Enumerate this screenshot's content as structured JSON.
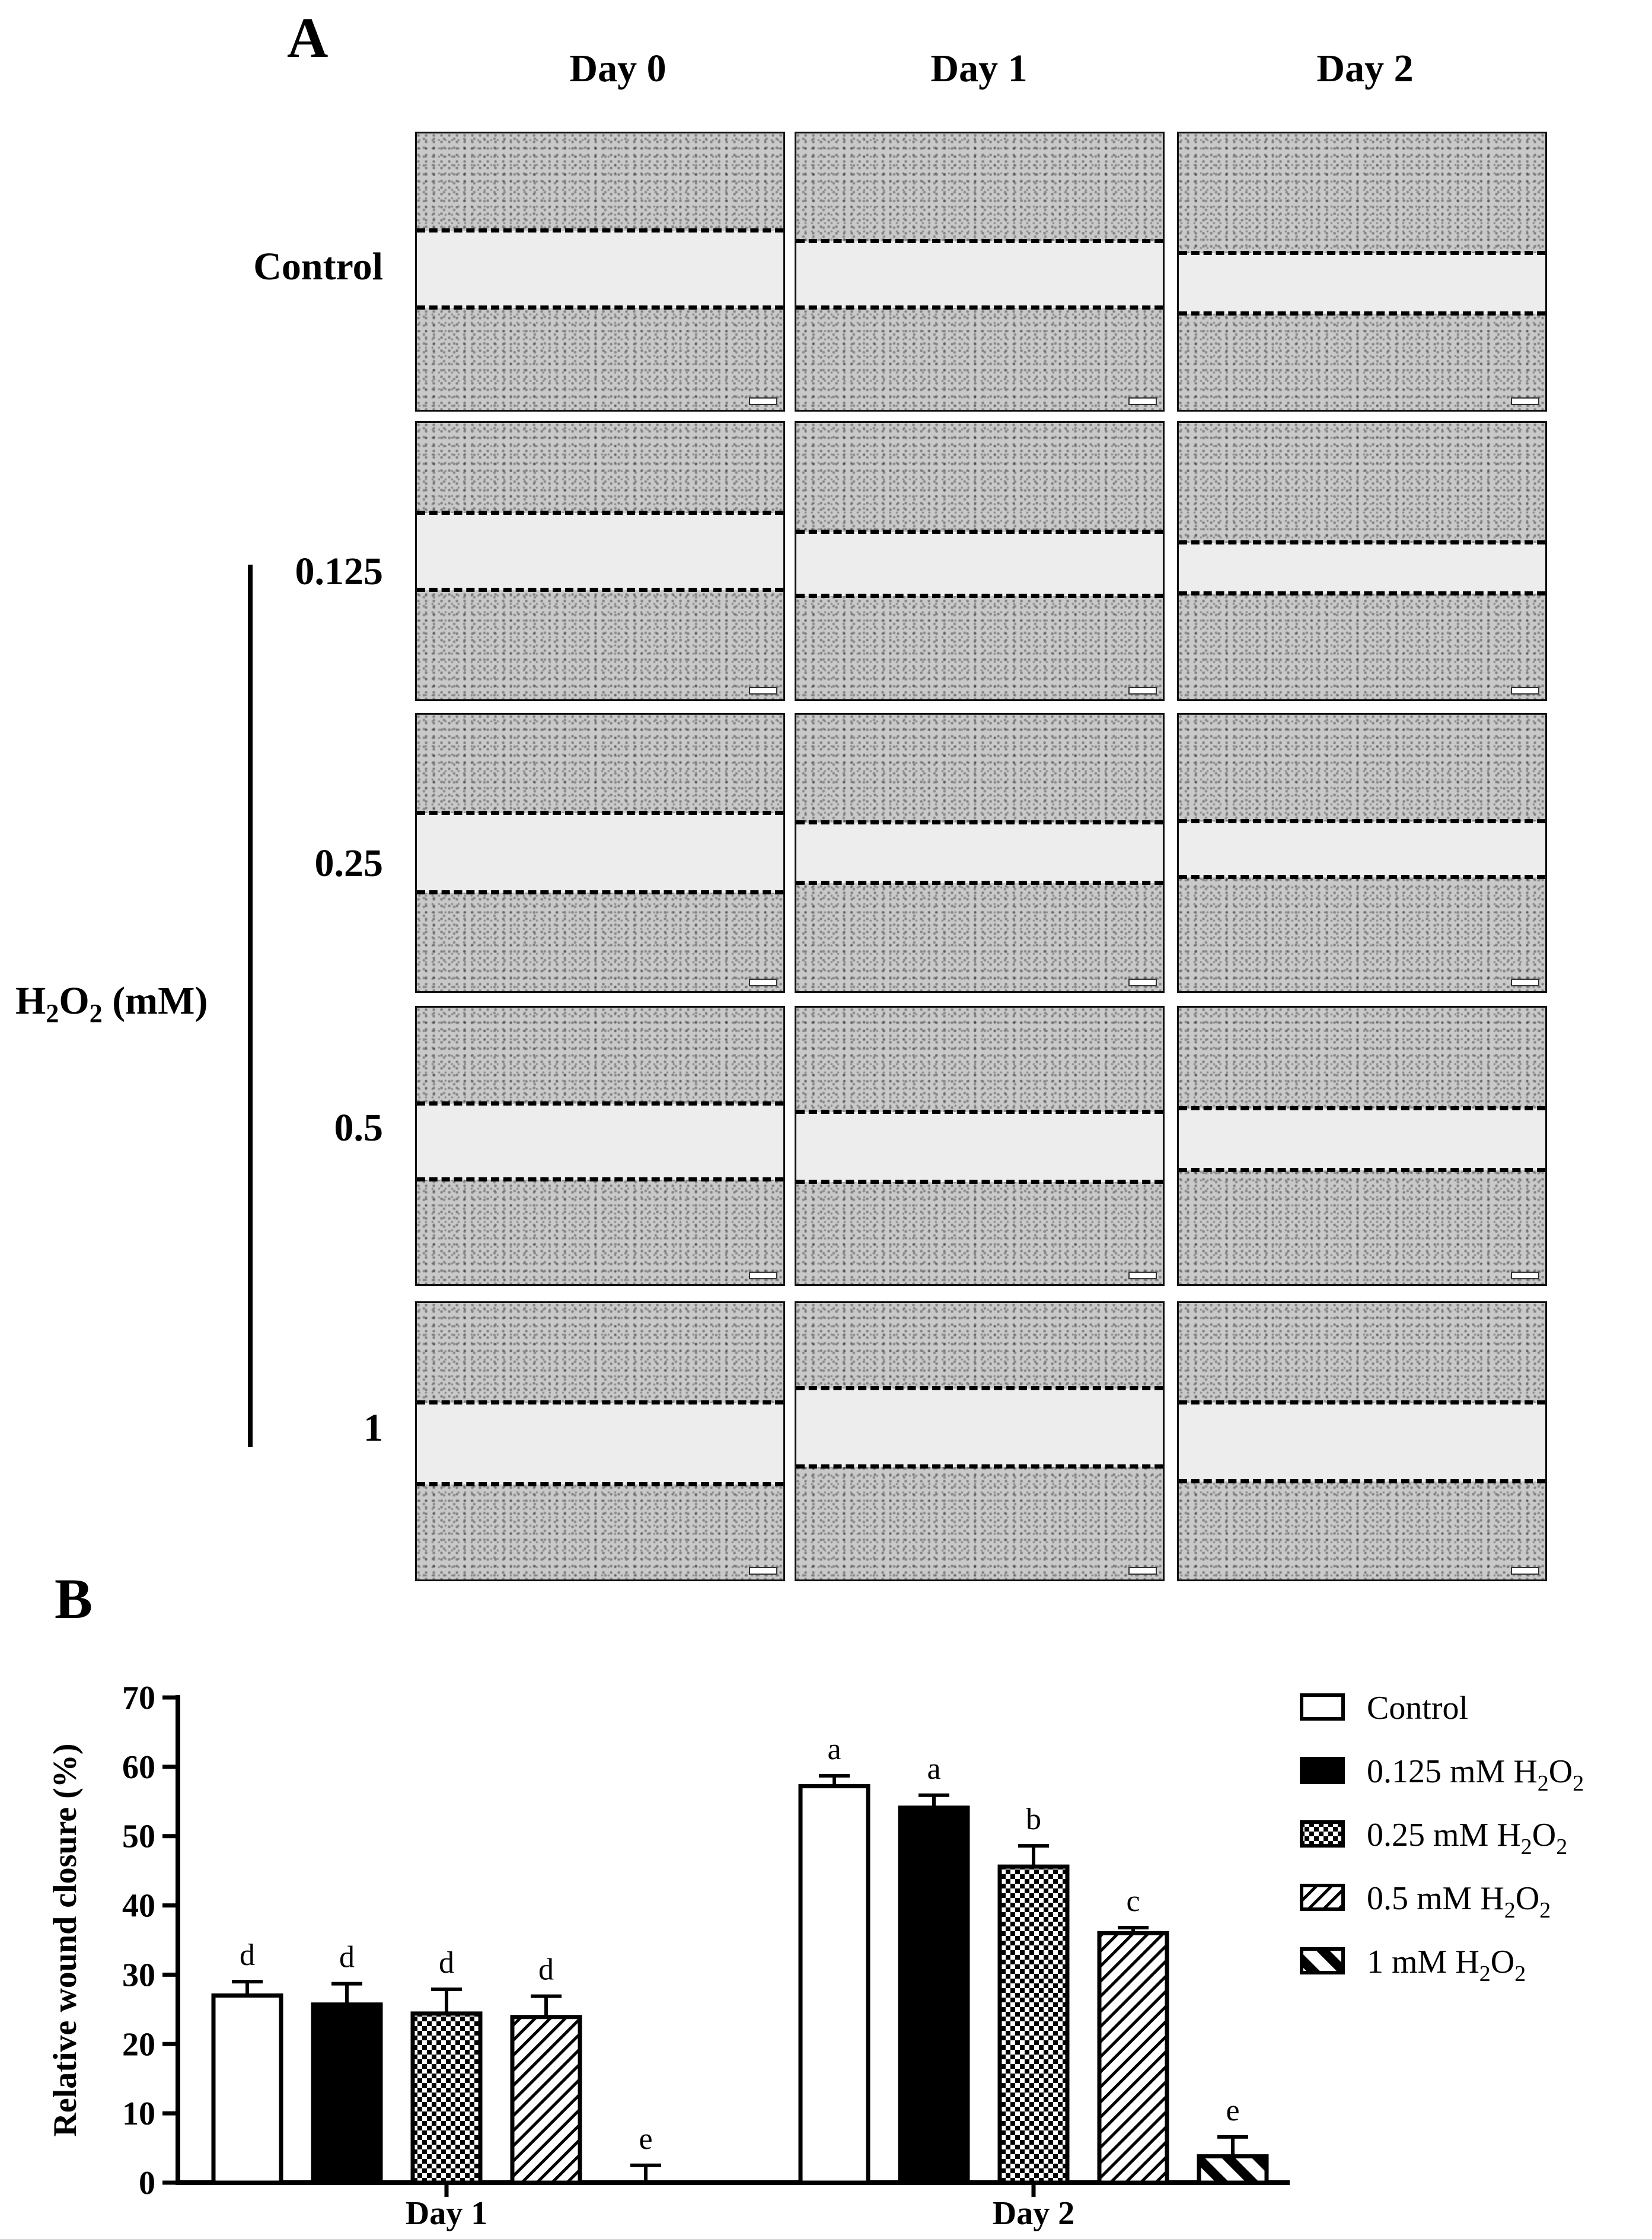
{
  "figure": {
    "panel_a_label": "A",
    "panel_b_label": "B",
    "columns": [
      "Day 0",
      "Day 1",
      "Day 2"
    ],
    "rows": [
      "Control",
      "0.125",
      "0.25",
      "0.5",
      "1"
    ],
    "group_label": {
      "main": "H",
      "sub": "2",
      "rest": "O",
      "sub2": "2",
      "unit": " (mM)"
    }
  },
  "chart_data": {
    "type": "bar",
    "categories": [
      "Day 1",
      "Day 2"
    ],
    "ylabel": "Relative wound closure (%)",
    "ylim": [
      0,
      70
    ],
    "yticks": [
      0,
      10,
      20,
      30,
      40,
      50,
      60,
      70
    ],
    "legend_position": "right",
    "series": [
      {
        "name": "Control",
        "legend": [
          "Control",
          "",
          ""
        ],
        "pattern": "open",
        "values": [
          27.0,
          57.2
        ],
        "errors": [
          2.0,
          1.5
        ],
        "letters": [
          "d",
          "a"
        ]
      },
      {
        "name": "0.125 mM H2O2",
        "legend": [
          "0.125 mM H",
          "2",
          "O",
          "2"
        ],
        "pattern": "solid",
        "values": [
          25.7,
          54.1
        ],
        "errors": [
          3.0,
          1.8
        ],
        "letters": [
          "d",
          "a"
        ]
      },
      {
        "name": "0.25 mM H2O2",
        "legend": [
          "0.25 mM H",
          "2",
          "O",
          "2"
        ],
        "pattern": "checker",
        "values": [
          24.4,
          45.6
        ],
        "errors": [
          3.5,
          3.0
        ],
        "letters": [
          "d",
          "b"
        ]
      },
      {
        "name": "0.5 mM H2O2",
        "legend": [
          "0.5 mM H",
          "2",
          "O",
          "2"
        ],
        "pattern": "diag-thin",
        "values": [
          23.9,
          36.0
        ],
        "errors": [
          3.0,
          0.8
        ],
        "letters": [
          "d",
          "c"
        ]
      },
      {
        "name": "1 mM H2O2",
        "legend": [
          "1 mM H",
          "2",
          "O",
          "2"
        ],
        "pattern": "diag-thick",
        "values": [
          0.0,
          3.8
        ],
        "errors": [
          2.5,
          2.8
        ],
        "letters": [
          "e",
          "e"
        ]
      }
    ]
  }
}
